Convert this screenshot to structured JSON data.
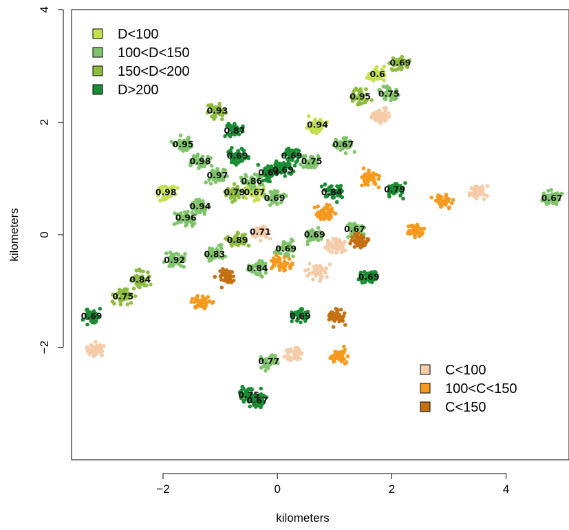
{
  "chart_data": {
    "type": "scatter",
    "title": "",
    "xlabel": "kilometers",
    "ylabel": "kilometers",
    "xlim": [
      -3.6,
      5.1
    ],
    "ylim": [
      -4.0,
      4.0
    ],
    "x_ticks": [
      -2,
      0,
      2,
      4
    ],
    "y_ticks": [
      -2,
      0,
      2,
      4
    ],
    "x_tick_labels": [
      "−2",
      "0",
      "2",
      "4"
    ],
    "y_tick_labels": [
      "−2",
      "0",
      "2",
      "4"
    ],
    "grid": false,
    "legends": [
      {
        "placement": "top-left",
        "entries": [
          {
            "label": "D<100",
            "color": "#c3e04e"
          },
          {
            "label": "100<D<150",
            "color": "#7fc46b"
          },
          {
            "label": "150<D<200",
            "color": "#8ebc3e"
          },
          {
            "label": "D>200",
            "color": "#1a8c34"
          }
        ]
      },
      {
        "placement": "bottom-right",
        "entries": [
          {
            "label": "C<100",
            "color": "#f5cba8"
          },
          {
            "label": "100<C<150",
            "color": "#f59a1e"
          },
          {
            "label": "C<150",
            "color": "#c27012"
          }
        ]
      }
    ],
    "clusters": [
      {
        "category": "D>200",
        "x": -3.25,
        "y": -1.45,
        "label": "0.69"
      },
      {
        "category": "150<D<200",
        "x": -2.7,
        "y": -1.1,
        "label": "0.75"
      },
      {
        "category": "150<D<200",
        "x": -2.4,
        "y": -0.8,
        "label": "0.84"
      },
      {
        "category": "100<D<150",
        "x": -1.8,
        "y": -0.45,
        "label": "0.92"
      },
      {
        "category": "100<D<150",
        "x": -1.1,
        "y": -0.35,
        "label": "0.83"
      },
      {
        "category": "150<D<200",
        "x": -0.7,
        "y": -0.1,
        "label": "0.89"
      },
      {
        "category": "100<D<150",
        "x": -0.35,
        "y": -0.6,
        "label": "0.84"
      },
      {
        "category": "100<D<150",
        "x": 0.15,
        "y": -0.25,
        "label": "0.69"
      },
      {
        "category": "100<D<150",
        "x": 0.65,
        "y": 0.0,
        "label": "0.69"
      },
      {
        "category": "100<D<150",
        "x": 1.35,
        "y": 0.1,
        "label": "0.67"
      },
      {
        "category": "D<100",
        "x": -1.95,
        "y": 0.75,
        "label": "0.98"
      },
      {
        "category": "100<D<150",
        "x": -1.35,
        "y": 0.5,
        "label": "0.94"
      },
      {
        "category": "100<D<150",
        "x": -1.6,
        "y": 0.3,
        "label": "0.96"
      },
      {
        "category": "150<D<200",
        "x": -0.75,
        "y": 0.75,
        "label": "0.79"
      },
      {
        "category": "D<100",
        "x": -0.4,
        "y": 0.75,
        "label": "0.67"
      },
      {
        "category": "100<D<150",
        "x": -0.05,
        "y": 0.65,
        "label": "0.69"
      },
      {
        "category": "100<D<150",
        "x": -1.65,
        "y": 1.6,
        "label": "0.95"
      },
      {
        "category": "100<D<150",
        "x": -1.35,
        "y": 1.3,
        "label": "0.98"
      },
      {
        "category": "100<D<150",
        "x": -1.05,
        "y": 1.05,
        "label": "0.97"
      },
      {
        "category": "150<D<200",
        "x": -1.05,
        "y": 2.2,
        "label": "0.93"
      },
      {
        "category": "D>200",
        "x": -0.75,
        "y": 1.85,
        "label": "0.87"
      },
      {
        "category": "D>200",
        "x": -0.7,
        "y": 1.4,
        "label": "0.69"
      },
      {
        "category": "D>200",
        "x": -0.15,
        "y": 1.1,
        "label": "0.64"
      },
      {
        "category": "100<D<150",
        "x": -0.45,
        "y": 0.95,
        "label": "0.86"
      },
      {
        "category": "D>200",
        "x": 0.1,
        "y": 1.15,
        "label": "0.69"
      },
      {
        "category": "D>200",
        "x": 0.25,
        "y": 1.4,
        "label": "0.69"
      },
      {
        "category": "100<D<150",
        "x": 0.6,
        "y": 1.3,
        "label": "0.75"
      },
      {
        "category": "C<100",
        "x": -0.3,
        "y": 0.05,
        "label": "0.71"
      },
      {
        "category": "D>200",
        "x": 0.95,
        "y": 0.75,
        "label": "0.84"
      },
      {
        "category": "100<D<150",
        "x": 1.15,
        "y": 1.6,
        "label": "0.67"
      },
      {
        "category": "D<100",
        "x": 0.7,
        "y": 1.95,
        "label": "0.94"
      },
      {
        "category": "150<D<200",
        "x": 1.45,
        "y": 2.45,
        "label": "0.95"
      },
      {
        "category": "D<100",
        "x": 1.75,
        "y": 2.85,
        "label": "0.6"
      },
      {
        "category": "150<D<200",
        "x": 2.15,
        "y": 3.05,
        "label": "0.69"
      },
      {
        "category": "100<D<150",
        "x": 1.95,
        "y": 2.5,
        "label": "0.75"
      },
      {
        "category": "D>200",
        "x": 2.05,
        "y": 0.8,
        "label": "0.79"
      },
      {
        "category": "D>200",
        "x": 1.6,
        "y": -0.75,
        "label": "0.69"
      },
      {
        "category": "D>200",
        "x": 0.4,
        "y": -1.45,
        "label": "0.69"
      },
      {
        "category": "100<D<150",
        "x": -0.15,
        "y": -2.25,
        "label": "0.77"
      },
      {
        "category": "D>200",
        "x": -0.5,
        "y": -2.85,
        "label": "0.75"
      },
      {
        "category": "D>200",
        "x": -0.35,
        "y": -2.95,
        "label": "0.67"
      },
      {
        "category": "100<D<150",
        "x": 4.8,
        "y": 0.65,
        "label": "0.67"
      },
      {
        "category": "C<100",
        "x": -3.2,
        "y": -2.05,
        "label": ""
      },
      {
        "category": "C<100",
        "x": 1.8,
        "y": 2.1,
        "label": ""
      },
      {
        "category": "C<100",
        "x": 3.5,
        "y": 0.75,
        "label": ""
      },
      {
        "category": "C<100",
        "x": 0.7,
        "y": -0.65,
        "label": ""
      },
      {
        "category": "C<100",
        "x": 1.0,
        "y": -0.2,
        "label": ""
      },
      {
        "category": "C<100",
        "x": 0.3,
        "y": -2.1,
        "label": ""
      },
      {
        "category": "100<C<150",
        "x": 1.6,
        "y": 1.0,
        "label": ""
      },
      {
        "category": "100<C<150",
        "x": 0.85,
        "y": 0.4,
        "label": ""
      },
      {
        "category": "100<C<150",
        "x": 2.4,
        "y": 0.05,
        "label": ""
      },
      {
        "category": "100<C<150",
        "x": 0.05,
        "y": -0.5,
        "label": ""
      },
      {
        "category": "100<C<150",
        "x": -1.3,
        "y": -1.2,
        "label": ""
      },
      {
        "category": "100<C<150",
        "x": 1.1,
        "y": -2.15,
        "label": ""
      },
      {
        "category": "100<C<150",
        "x": 2.9,
        "y": 0.6,
        "label": ""
      },
      {
        "category": "C<150",
        "x": 1.45,
        "y": -0.1,
        "label": ""
      },
      {
        "category": "C<150",
        "x": 1.05,
        "y": -1.45,
        "label": ""
      },
      {
        "category": "C<150",
        "x": -0.9,
        "y": -0.75,
        "label": ""
      }
    ]
  }
}
